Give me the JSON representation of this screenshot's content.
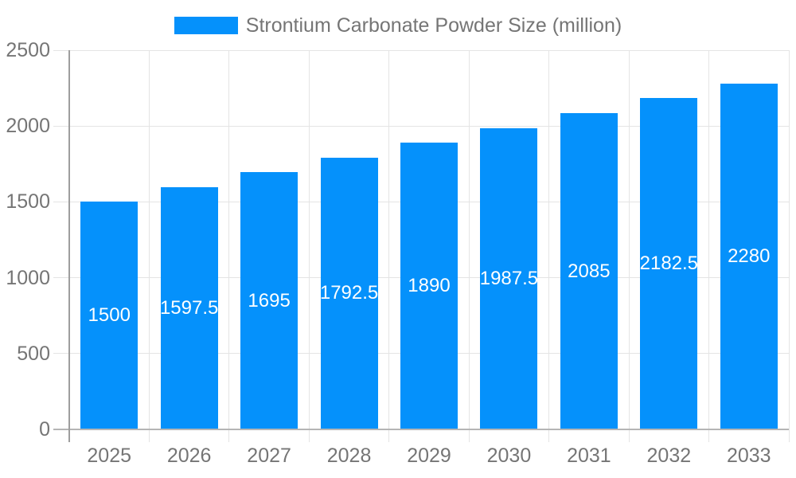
{
  "chart_data": {
    "type": "bar",
    "title": "Strontium Carbonate Powder Size (million)",
    "categories": [
      "2025",
      "2026",
      "2027",
      "2028",
      "2029",
      "2030",
      "2031",
      "2032",
      "2033"
    ],
    "values": [
      1500,
      1597.5,
      1695,
      1792.5,
      1890,
      1987.5,
      2085,
      2182.5,
      2280
    ],
    "xlabel": "",
    "ylabel": "",
    "ylim": [
      0,
      2500
    ],
    "y_ticks": [
      0,
      500,
      1000,
      1500,
      2000,
      2500
    ],
    "grid": true,
    "legend_position": "top-center",
    "value_labels_position": "inside-center",
    "colors": {
      "bar": "#0591fb",
      "axis_text": "#757575",
      "legend_text": "#757575",
      "value_text": "#ffffff",
      "gridline": "#e4e4e4",
      "baseline": "#b5b5b5",
      "y_axis_line": "#9e9e9e",
      "background": "#ffffff"
    }
  }
}
